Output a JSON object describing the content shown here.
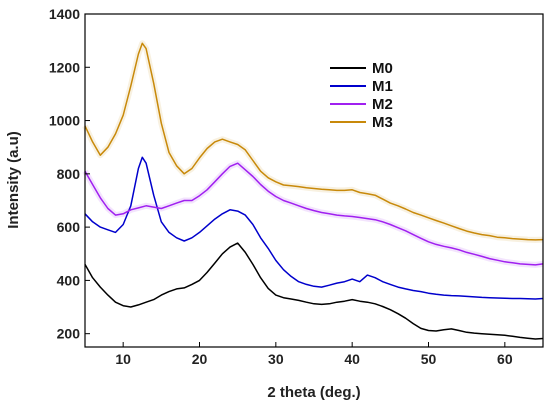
{
  "chart_data": {
    "type": "line",
    "title": "",
    "xlabel": "2 theta (deg.)",
    "ylabel": "Intensity (a.u)",
    "xlim": [
      5,
      65
    ],
    "ylim": [
      150,
      1400
    ],
    "xticks": [
      10,
      20,
      30,
      40,
      50,
      60
    ],
    "yticks": [
      200,
      400,
      600,
      800,
      1000,
      1200,
      1400
    ],
    "grid": false,
    "legend_position": "top-right",
    "series": [
      {
        "name": "M0",
        "color": "#000000",
        "points": [
          [
            5,
            460
          ],
          [
            6,
            410
          ],
          [
            7,
            375
          ],
          [
            8,
            345
          ],
          [
            9,
            318
          ],
          [
            10,
            305
          ],
          [
            11,
            300
          ],
          [
            12,
            308
          ],
          [
            13,
            318
          ],
          [
            14,
            328
          ],
          [
            15,
            345
          ],
          [
            16,
            358
          ],
          [
            17,
            368
          ],
          [
            18,
            372
          ],
          [
            19,
            385
          ],
          [
            20,
            400
          ],
          [
            21,
            430
          ],
          [
            22,
            465
          ],
          [
            23,
            500
          ],
          [
            24,
            525
          ],
          [
            25,
            540
          ],
          [
            26,
            505
          ],
          [
            27,
            460
          ],
          [
            28,
            410
          ],
          [
            29,
            370
          ],
          [
            30,
            345
          ],
          [
            31,
            335
          ],
          [
            32,
            330
          ],
          [
            33,
            325
          ],
          [
            34,
            318
          ],
          [
            35,
            312
          ],
          [
            36,
            310
          ],
          [
            37,
            312
          ],
          [
            38,
            318
          ],
          [
            39,
            322
          ],
          [
            40,
            328
          ],
          [
            41,
            322
          ],
          [
            42,
            318
          ],
          [
            43,
            312
          ],
          [
            44,
            302
          ],
          [
            45,
            290
          ],
          [
            46,
            275
          ],
          [
            47,
            258
          ],
          [
            48,
            238
          ],
          [
            49,
            220
          ],
          [
            50,
            212
          ],
          [
            51,
            210
          ],
          [
            52,
            215
          ],
          [
            53,
            218
          ],
          [
            54,
            212
          ],
          [
            55,
            205
          ],
          [
            56,
            202
          ],
          [
            57,
            200
          ],
          [
            58,
            198
          ],
          [
            59,
            196
          ],
          [
            60,
            194
          ],
          [
            61,
            190
          ],
          [
            62,
            186
          ],
          [
            63,
            183
          ],
          [
            64,
            180
          ],
          [
            65,
            182
          ]
        ]
      },
      {
        "name": "M1",
        "color": "#0000cc",
        "points": [
          [
            5,
            650
          ],
          [
            6,
            620
          ],
          [
            7,
            600
          ],
          [
            8,
            590
          ],
          [
            9,
            580
          ],
          [
            10,
            610
          ],
          [
            11,
            680
          ],
          [
            12,
            820
          ],
          [
            12.5,
            862
          ],
          [
            13,
            840
          ],
          [
            14,
            720
          ],
          [
            15,
            620
          ],
          [
            16,
            580
          ],
          [
            17,
            560
          ],
          [
            18,
            548
          ],
          [
            19,
            560
          ],
          [
            20,
            580
          ],
          [
            21,
            605
          ],
          [
            22,
            630
          ],
          [
            23,
            650
          ],
          [
            24,
            665
          ],
          [
            25,
            660
          ],
          [
            26,
            645
          ],
          [
            27,
            610
          ],
          [
            28,
            560
          ],
          [
            29,
            520
          ],
          [
            30,
            475
          ],
          [
            31,
            440
          ],
          [
            32,
            415
          ],
          [
            33,
            395
          ],
          [
            34,
            385
          ],
          [
            35,
            378
          ],
          [
            36,
            375
          ],
          [
            37,
            382
          ],
          [
            38,
            390
          ],
          [
            39,
            395
          ],
          [
            40,
            405
          ],
          [
            41,
            395
          ],
          [
            42,
            420
          ],
          [
            43,
            410
          ],
          [
            44,
            395
          ],
          [
            45,
            385
          ],
          [
            46,
            375
          ],
          [
            47,
            368
          ],
          [
            48,
            362
          ],
          [
            49,
            358
          ],
          [
            50,
            352
          ],
          [
            51,
            348
          ],
          [
            52,
            345
          ],
          [
            53,
            343
          ],
          [
            54,
            342
          ],
          [
            55,
            340
          ],
          [
            56,
            338
          ],
          [
            57,
            336
          ],
          [
            58,
            335
          ],
          [
            59,
            334
          ],
          [
            60,
            333
          ],
          [
            61,
            332
          ],
          [
            62,
            332
          ],
          [
            63,
            331
          ],
          [
            64,
            330
          ],
          [
            65,
            332
          ]
        ]
      },
      {
        "name": "M2",
        "color": "#a020f0",
        "points": [
          [
            5,
            810
          ],
          [
            6,
            760
          ],
          [
            7,
            710
          ],
          [
            8,
            670
          ],
          [
            9,
            645
          ],
          [
            10,
            650
          ],
          [
            11,
            665
          ],
          [
            12,
            672
          ],
          [
            13,
            680
          ],
          [
            14,
            675
          ],
          [
            15,
            670
          ],
          [
            16,
            680
          ],
          [
            17,
            690
          ],
          [
            18,
            700
          ],
          [
            19,
            700
          ],
          [
            20,
            718
          ],
          [
            21,
            740
          ],
          [
            22,
            770
          ],
          [
            23,
            800
          ],
          [
            24,
            828
          ],
          [
            25,
            840
          ],
          [
            26,
            815
          ],
          [
            27,
            790
          ],
          [
            28,
            760
          ],
          [
            29,
            735
          ],
          [
            30,
            715
          ],
          [
            31,
            700
          ],
          [
            32,
            690
          ],
          [
            33,
            680
          ],
          [
            34,
            670
          ],
          [
            35,
            662
          ],
          [
            36,
            655
          ],
          [
            37,
            650
          ],
          [
            38,
            645
          ],
          [
            39,
            642
          ],
          [
            40,
            640
          ],
          [
            41,
            636
          ],
          [
            42,
            632
          ],
          [
            43,
            628
          ],
          [
            44,
            620
          ],
          [
            45,
            610
          ],
          [
            46,
            598
          ],
          [
            47,
            586
          ],
          [
            48,
            572
          ],
          [
            49,
            558
          ],
          [
            50,
            545
          ],
          [
            51,
            535
          ],
          [
            52,
            528
          ],
          [
            53,
            522
          ],
          [
            54,
            515
          ],
          [
            55,
            505
          ],
          [
            56,
            498
          ],
          [
            57,
            490
          ],
          [
            58,
            482
          ],
          [
            59,
            476
          ],
          [
            60,
            470
          ],
          [
            61,
            466
          ],
          [
            62,
            462
          ],
          [
            63,
            460
          ],
          [
            64,
            458
          ],
          [
            65,
            462
          ]
        ]
      },
      {
        "name": "M3",
        "color": "#c8890a",
        "points": [
          [
            5,
            980
          ],
          [
            6,
            920
          ],
          [
            7,
            870
          ],
          [
            8,
            900
          ],
          [
            9,
            950
          ],
          [
            10,
            1020
          ],
          [
            11,
            1130
          ],
          [
            12,
            1250
          ],
          [
            12.5,
            1290
          ],
          [
            13,
            1270
          ],
          [
            14,
            1140
          ],
          [
            15,
            990
          ],
          [
            16,
            880
          ],
          [
            17,
            830
          ],
          [
            18,
            800
          ],
          [
            19,
            820
          ],
          [
            20,
            860
          ],
          [
            21,
            895
          ],
          [
            22,
            920
          ],
          [
            23,
            930
          ],
          [
            24,
            920
          ],
          [
            25,
            910
          ],
          [
            26,
            890
          ],
          [
            27,
            850
          ],
          [
            28,
            810
          ],
          [
            29,
            785
          ],
          [
            30,
            770
          ],
          [
            31,
            758
          ],
          [
            32,
            755
          ],
          [
            33,
            752
          ],
          [
            34,
            748
          ],
          [
            35,
            745
          ],
          [
            36,
            742
          ],
          [
            37,
            740
          ],
          [
            38,
            738
          ],
          [
            39,
            738
          ],
          [
            40,
            740
          ],
          [
            41,
            730
          ],
          [
            42,
            725
          ],
          [
            43,
            720
          ],
          [
            44,
            705
          ],
          [
            45,
            690
          ],
          [
            46,
            680
          ],
          [
            47,
            668
          ],
          [
            48,
            655
          ],
          [
            49,
            645
          ],
          [
            50,
            635
          ],
          [
            51,
            625
          ],
          [
            52,
            615
          ],
          [
            53,
            605
          ],
          [
            54,
            595
          ],
          [
            55,
            585
          ],
          [
            56,
            578
          ],
          [
            57,
            572
          ],
          [
            58,
            568
          ],
          [
            59,
            562
          ],
          [
            60,
            560
          ],
          [
            61,
            557
          ],
          [
            62,
            555
          ],
          [
            63,
            553
          ],
          [
            64,
            552
          ],
          [
            65,
            553
          ]
        ]
      }
    ]
  }
}
